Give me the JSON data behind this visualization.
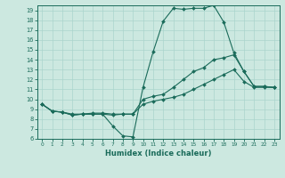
{
  "xlabel": "Humidex (Indice chaleur)",
  "bg_color": "#cce8e0",
  "line_color": "#1a6b5a",
  "grid_color": "#aad4cc",
  "xlim": [
    -0.5,
    23.5
  ],
  "ylim": [
    6,
    19.5
  ],
  "yticks": [
    6,
    7,
    8,
    9,
    10,
    11,
    12,
    13,
    14,
    15,
    16,
    17,
    18,
    19
  ],
  "xticks": [
    0,
    1,
    2,
    3,
    4,
    5,
    6,
    7,
    8,
    9,
    10,
    11,
    12,
    13,
    14,
    15,
    16,
    17,
    18,
    19,
    20,
    21,
    22,
    23
  ],
  "series": [
    {
      "x": [
        0,
        1,
        2,
        3,
        4,
        5,
        6,
        7,
        8,
        9,
        10,
        11,
        12,
        13,
        14,
        15,
        16,
        17,
        18,
        19,
        20,
        21,
        22,
        23
      ],
      "y": [
        9.5,
        8.8,
        8.7,
        8.5,
        8.5,
        8.5,
        8.5,
        7.3,
        6.3,
        6.2,
        11.2,
        14.8,
        17.9,
        19.2,
        19.1,
        19.2,
        19.2,
        19.5,
        17.8,
        14.7,
        12.8,
        11.3,
        11.3,
        11.2
      ]
    },
    {
      "x": [
        0,
        1,
        2,
        3,
        4,
        5,
        6,
        7,
        8,
        9,
        10,
        11,
        12,
        13,
        14,
        15,
        16,
        17,
        18,
        19,
        20,
        21,
        22,
        23
      ],
      "y": [
        9.5,
        8.8,
        8.7,
        8.4,
        8.5,
        8.6,
        8.6,
        8.5,
        8.5,
        8.5,
        10.0,
        10.3,
        10.5,
        11.2,
        12.0,
        12.8,
        13.2,
        14.0,
        14.2,
        14.5,
        12.8,
        11.3,
        11.3,
        11.2
      ]
    },
    {
      "x": [
        0,
        1,
        2,
        3,
        4,
        5,
        6,
        7,
        8,
        9,
        10,
        11,
        12,
        13,
        14,
        15,
        16,
        17,
        18,
        19,
        20,
        21,
        22,
        23
      ],
      "y": [
        9.5,
        8.8,
        8.7,
        8.4,
        8.5,
        8.5,
        8.5,
        8.4,
        8.5,
        8.5,
        9.5,
        9.8,
        10.0,
        10.2,
        10.5,
        11.0,
        11.5,
        12.0,
        12.5,
        13.0,
        11.8,
        11.2,
        11.2,
        11.2
      ]
    }
  ]
}
